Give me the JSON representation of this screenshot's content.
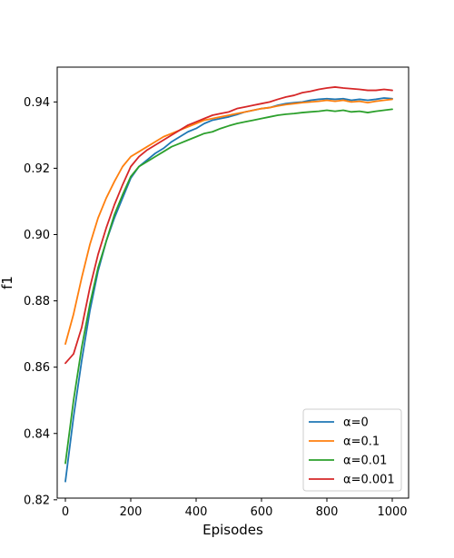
{
  "chart_data": {
    "type": "line",
    "title": "",
    "xlabel": "Episodes",
    "ylabel": "f1",
    "xlim": [
      -25,
      1050
    ],
    "ylim": [
      0.8205,
      0.9505
    ],
    "x_ticks": [
      0,
      200,
      400,
      600,
      800,
      1000
    ],
    "x_tick_labels": [
      "0",
      "200",
      "400",
      "600",
      "800",
      "1000"
    ],
    "y_ticks": [
      0.82,
      0.84,
      0.86,
      0.88,
      0.9,
      0.92,
      0.94
    ],
    "y_tick_labels": [
      "0.82",
      "0.84",
      "0.86",
      "0.88",
      "0.90",
      "0.92",
      "0.94"
    ],
    "grid": false,
    "legend_position": "lower-right",
    "x": [
      0,
      25,
      50,
      75,
      100,
      125,
      150,
      175,
      200,
      225,
      250,
      275,
      300,
      325,
      350,
      375,
      400,
      425,
      450,
      475,
      500,
      525,
      550,
      575,
      600,
      625,
      650,
      675,
      700,
      725,
      750,
      775,
      800,
      825,
      850,
      875,
      900,
      925,
      950,
      975,
      1000
    ],
    "series": [
      {
        "name": "α=0",
        "color": "#1f77b4",
        "values": [
          0.8255,
          0.845,
          0.862,
          0.877,
          0.889,
          0.898,
          0.905,
          0.911,
          0.917,
          0.9205,
          0.9225,
          0.9245,
          0.926,
          0.928,
          0.9295,
          0.931,
          0.932,
          0.9335,
          0.9345,
          0.935,
          0.9355,
          0.9362,
          0.937,
          0.9375,
          0.938,
          0.9383,
          0.939,
          0.9395,
          0.9398,
          0.94,
          0.9405,
          0.9408,
          0.941,
          0.9408,
          0.941,
          0.9405,
          0.9408,
          0.9405,
          0.9408,
          0.9412,
          0.941
        ]
      },
      {
        "name": "α=0.1",
        "color": "#ff7f0e",
        "values": [
          0.867,
          0.876,
          0.887,
          0.897,
          0.905,
          0.911,
          0.916,
          0.9205,
          0.9235,
          0.925,
          0.9265,
          0.928,
          0.9295,
          0.9305,
          0.9315,
          0.9325,
          0.9335,
          0.9345,
          0.935,
          0.9355,
          0.936,
          0.9365,
          0.937,
          0.9375,
          0.938,
          0.9383,
          0.9388,
          0.9392,
          0.9395,
          0.9398,
          0.94,
          0.9402,
          0.9405,
          0.9402,
          0.9405,
          0.94,
          0.9402,
          0.9398,
          0.9402,
          0.9405,
          0.9408
        ]
      },
      {
        "name": "α=0.01",
        "color": "#2ca02c",
        "values": [
          0.831,
          0.85,
          0.866,
          0.879,
          0.89,
          0.898,
          0.906,
          0.912,
          0.9175,
          0.9205,
          0.922,
          0.9235,
          0.925,
          0.9265,
          0.9275,
          0.9285,
          0.9295,
          0.9305,
          0.931,
          0.932,
          0.9328,
          0.9335,
          0.934,
          0.9345,
          0.935,
          0.9355,
          0.936,
          0.9363,
          0.9365,
          0.9368,
          0.937,
          0.9372,
          0.9375,
          0.9372,
          0.9375,
          0.937,
          0.9372,
          0.9368,
          0.9372,
          0.9375,
          0.9378
        ]
      },
      {
        "name": "α=0.001",
        "color": "#d62728",
        "values": [
          0.8612,
          0.864,
          0.872,
          0.884,
          0.894,
          0.902,
          0.909,
          0.915,
          0.9205,
          0.9235,
          0.9255,
          0.927,
          0.9285,
          0.93,
          0.9315,
          0.933,
          0.934,
          0.935,
          0.936,
          0.9365,
          0.937,
          0.938,
          0.9385,
          0.939,
          0.9395,
          0.94,
          0.9408,
          0.9415,
          0.942,
          0.9428,
          0.9432,
          0.9438,
          0.9442,
          0.9445,
          0.9442,
          0.944,
          0.9438,
          0.9435,
          0.9435,
          0.9438,
          0.9435
        ]
      }
    ]
  }
}
